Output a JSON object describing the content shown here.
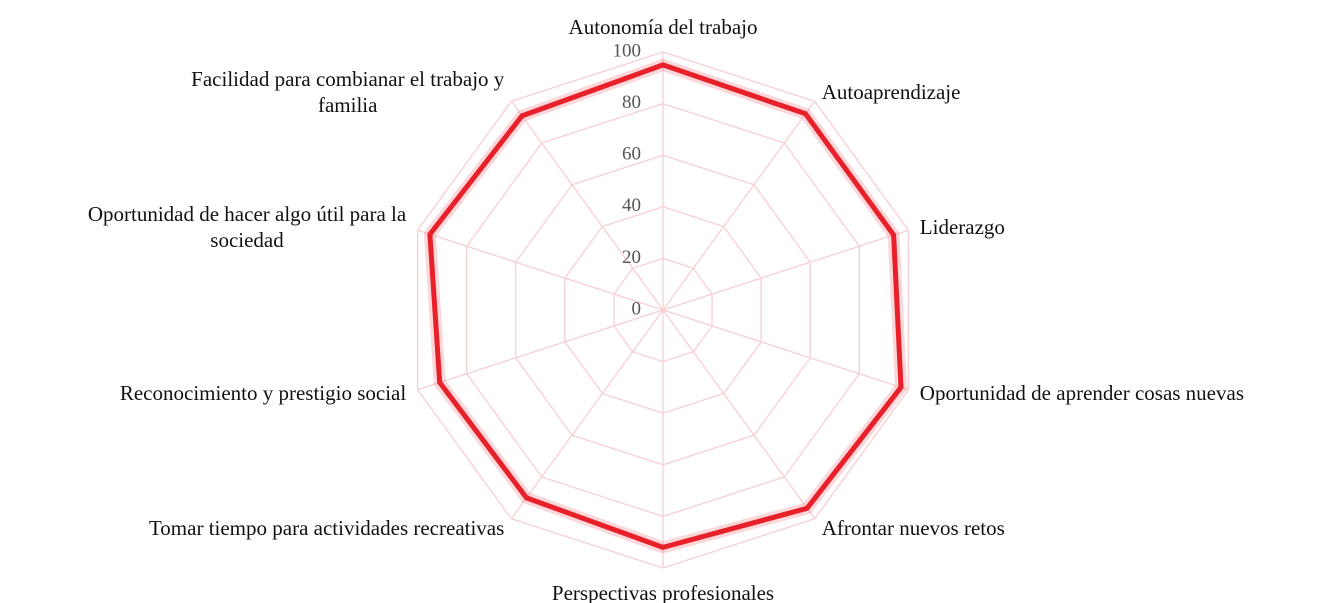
{
  "chart_data": {
    "type": "radar",
    "categories": [
      "Autonomía del trabajo",
      "Autoaprendizaje",
      "Liderazgo",
      "Oportunidad de aprender cosas nuevas",
      "Afrontar nuevos retos",
      "Perspectivas profesionales",
      "Tomar tiempo para actividades recreativas",
      "Reconocimiento y prestigio social",
      "Oportunidad de hacer algo útil para la\nsociedad",
      "Facilidad para combianar el trabajo y\nfamilia"
    ],
    "values": [
      95,
      94,
      94,
      97,
      95,
      92,
      90,
      91,
      95,
      93
    ],
    "color": "#e8202a",
    "ylim": [
      0,
      100
    ],
    "yticks": [
      0,
      20,
      40,
      60,
      80,
      100
    ],
    "grid": true
  }
}
